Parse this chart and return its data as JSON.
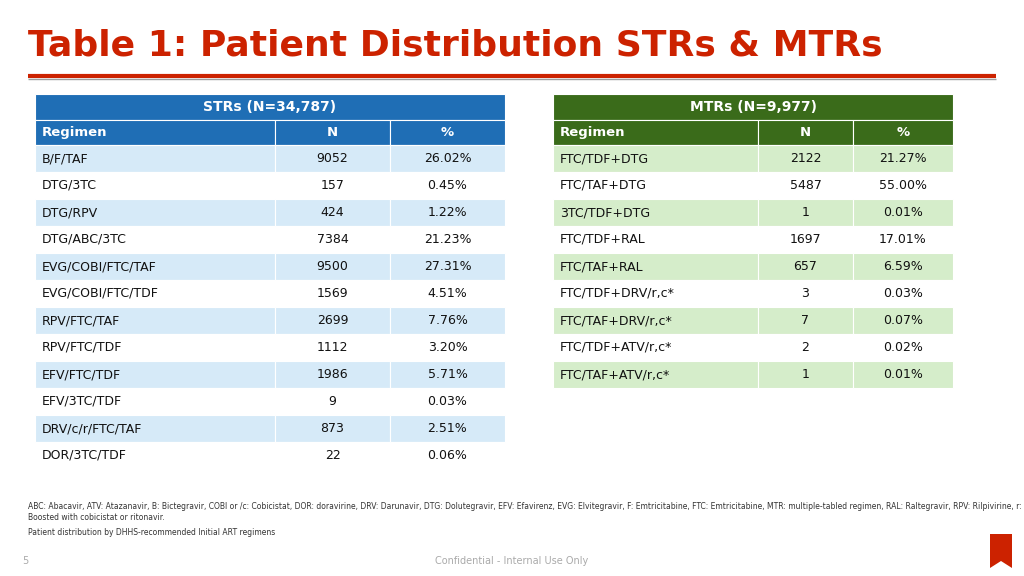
{
  "title": "Table 1: Patient Distribution STRs & MTRs",
  "title_color": "#CC2200",
  "background_color": "#FFFFFF",
  "strs_header": "STRs (N=34,787)",
  "mtrs_header": "MTRs (N=9,977)",
  "col_headers": [
    "Regimen",
    "N",
    "%"
  ],
  "strs_data": [
    [
      "B/F/TAF",
      "9052",
      "26.02%"
    ],
    [
      "DTG/3TC",
      "157",
      "0.45%"
    ],
    [
      "DTG/RPV",
      "424",
      "1.22%"
    ],
    [
      "DTG/ABC/3TC",
      "7384",
      "21.23%"
    ],
    [
      "EVG/COBI/FTC/TAF",
      "9500",
      "27.31%"
    ],
    [
      "EVG/COBI/FTC/TDF",
      "1569",
      "4.51%"
    ],
    [
      "RPV/FTC/TAF",
      "2699",
      "7.76%"
    ],
    [
      "RPV/FTC/TDF",
      "1112",
      "3.20%"
    ],
    [
      "EFV/FTC/TDF",
      "1986",
      "5.71%"
    ],
    [
      "EFV/3TC/TDF",
      "9",
      "0.03%"
    ],
    [
      "DRV/c/r/FTC/TAF",
      "873",
      "2.51%"
    ],
    [
      "DOR/3TC/TDF",
      "22",
      "0.06%"
    ]
  ],
  "mtrs_data": [
    [
      "FTC/TDF+DTG",
      "2122",
      "21.27%"
    ],
    [
      "FTC/TAF+DTG",
      "5487",
      "55.00%"
    ],
    [
      "3TC/TDF+DTG",
      "1",
      "0.01%"
    ],
    [
      "FTC/TDF+RAL",
      "1697",
      "17.01%"
    ],
    [
      "FTC/TAF+RAL",
      "657",
      "6.59%"
    ],
    [
      "FTC/TDF+DRV/r,c*",
      "3",
      "0.03%"
    ],
    [
      "FTC/TAF+DRV/r,c*",
      "7",
      "0.07%"
    ],
    [
      "FTC/TDF+ATV/r,c*",
      "2",
      "0.02%"
    ],
    [
      "FTC/TAF+ATV/r,c*",
      "1",
      "0.01%"
    ]
  ],
  "header_bg_strs": "#1F6EB5",
  "header_bg_mtrs": "#3A6B1A",
  "col_header_bg_strs": "#1F6EB5",
  "col_header_bg_mtrs": "#3A6B1A",
  "header_text_color": "#FFFFFF",
  "row_even_color_strs": "#FFFFFF",
  "row_odd_color_strs": "#D6EAF8",
  "row_even_color_mtrs": "#FFFFFF",
  "row_odd_color_mtrs": "#D5EDCA",
  "separator_line_color": "#CC2200",
  "gap_color": "#FFFFFF",
  "footnote1": "ABC: Abacavir, ATV: Atazanavir, B: Bictegravir, COBI or /c: Cobicistat, DOR: doravirine, DRV: Darunavir, DTG: Dolutegravir, EFV: Efavirenz, EVG: Elvitegravir, F: Emtricitabine, FTC: Emtricitabine, MTR: multiple-tabled regimen, RAL:",
  "footnote2": "Raltegravir, RPV: Rilpivirine, r: Ritonavir, STR: single-tablet regimen, TAF: Tenofovir alafenamide fumarate, 3TC: Lamivudine, TDF: Tenofovir disoproxil fumarate",
  "footnote3": "Boosted with cobicistat or ritonavir.",
  "footnote4": "Patient distribution by DHHS-recommended Initial ART regimens",
  "footer_text": "Confidential - Internal Use Only",
  "page_number": "5"
}
